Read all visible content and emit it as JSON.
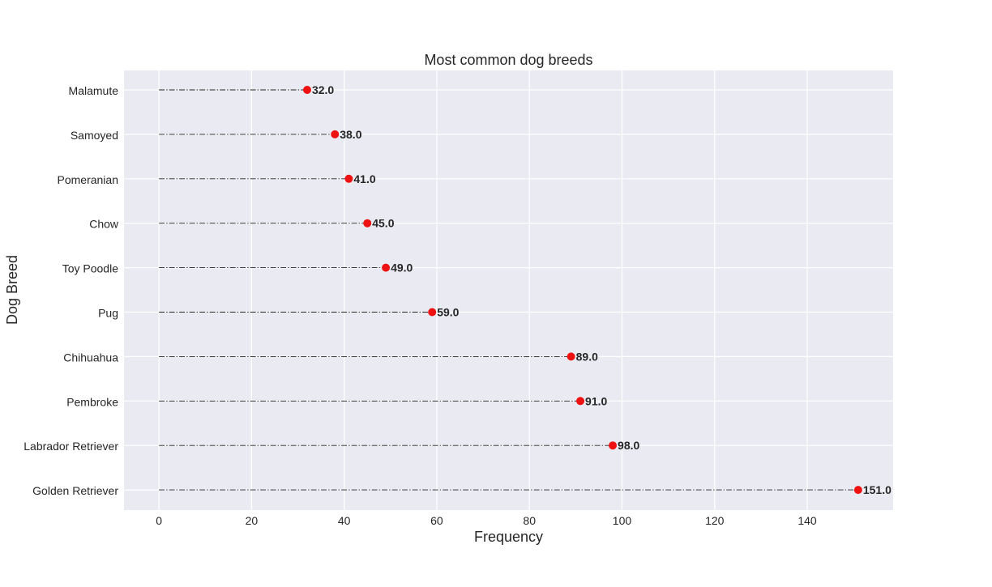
{
  "chart_data": {
    "type": "lollipop",
    "title": "Most common dog breeds",
    "xlabel": "Frequency",
    "ylabel": "Dog Breed",
    "categories": [
      "Malamute",
      "Samoyed",
      "Pomeranian",
      "Chow",
      "Toy Poodle",
      "Pug",
      "Chihuahua",
      "Pembroke",
      "Labrador Retriever",
      "Golden Retriever"
    ],
    "values": [
      32,
      38,
      41,
      45,
      49,
      59,
      89,
      91,
      98,
      151
    ],
    "value_labels": [
      "32.0",
      "38.0",
      "41.0",
      "45.0",
      "49.0",
      "59.0",
      "89.0",
      "91.0",
      "98.0",
      "151.0"
    ],
    "xticks": [
      0,
      20,
      40,
      60,
      80,
      100,
      120,
      140
    ],
    "xlim": [
      -7.55,
      158.55
    ],
    "grid": true,
    "marker_color": "#ee1111",
    "background_color": "#eaeaf2"
  }
}
